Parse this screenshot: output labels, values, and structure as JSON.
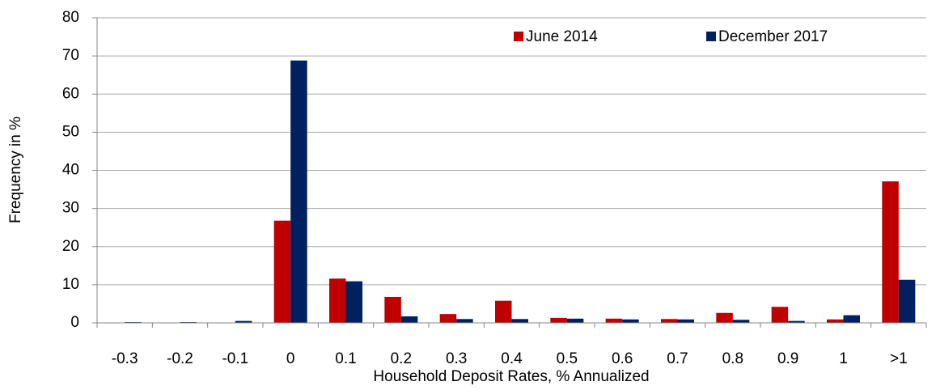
{
  "chart_data": {
    "type": "bar",
    "x_label": "Household Deposit Rates, % Annualized",
    "y_label": "Frequency in %",
    "categories": [
      "-0.3",
      "-0.2",
      "-0.1",
      "0",
      "0.1",
      "0.2",
      "0.3",
      "0.4",
      "0.5",
      "0.6",
      "0.7",
      "0.8",
      "0.9",
      "1",
      ">1"
    ],
    "series": [
      {
        "name": "June 2014",
        "color": "#c00000",
        "values": [
          0,
          0,
          0,
          26.8,
          11.6,
          6.8,
          2.3,
          5.8,
          1.3,
          1.1,
          1.0,
          2.6,
          4.2,
          0.9,
          37.1
        ]
      },
      {
        "name": "December 2017",
        "color": "#002060",
        "values": [
          0.2,
          0.2,
          0.5,
          68.8,
          10.9,
          1.7,
          1.0,
          1.0,
          1.1,
          0.9,
          0.9,
          0.8,
          0.5,
          2.0,
          11.3
        ]
      }
    ],
    "ylim": [
      0,
      80
    ],
    "yticks": [
      0,
      10,
      20,
      30,
      40,
      50,
      60,
      70,
      80
    ],
    "grid": true,
    "legend": "top"
  }
}
